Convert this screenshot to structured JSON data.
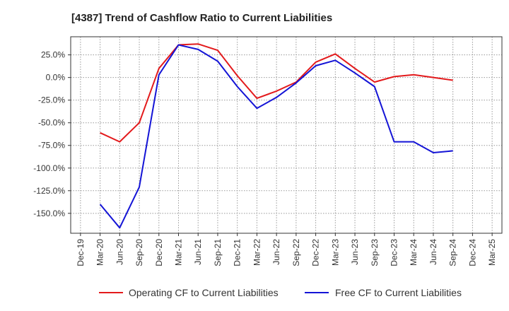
{
  "chart_data": {
    "type": "line",
    "title": "[4387]  Trend of Cashflow Ratio to Current Liabilities",
    "x_categories": [
      "Dec-19",
      "Mar-20",
      "Jun-20",
      "Sep-20",
      "Dec-20",
      "Mar-21",
      "Jun-21",
      "Sep-21",
      "Dec-21",
      "Mar-22",
      "Jun-22",
      "Sep-22",
      "Dec-22",
      "Mar-23",
      "Jun-23",
      "Sep-23",
      "Dec-23",
      "Mar-24",
      "Jun-24",
      "Sep-24",
      "Dec-24",
      "Mar-25"
    ],
    "y_ticks": [
      25,
      0,
      -25,
      -50,
      -75,
      -100,
      -125,
      -150
    ],
    "y_tick_labels": [
      "25.0%",
      "0.0%",
      "-25.0%",
      "-50.0%",
      "-75.0%",
      "-100.0%",
      "-125.0%",
      "-150.0%"
    ],
    "ylim": [
      -172,
      45
    ],
    "grid": true,
    "legend_position": "bottom",
    "series": [
      {
        "name": "Operating CF to Current Liabilities",
        "color": "#e31a1c",
        "values": [
          null,
          -61,
          -71,
          -50,
          10,
          36,
          37,
          30,
          2,
          -23,
          -15,
          -5,
          17,
          26,
          10,
          -5,
          1,
          3,
          0,
          -3,
          null,
          null
        ]
      },
      {
        "name": "Free CF to Current Liabilities",
        "color": "#1414d6",
        "values": [
          null,
          -140,
          -166,
          -121,
          3,
          36,
          31,
          18,
          -10,
          -34,
          -22,
          -6,
          13,
          19,
          5,
          -10,
          -71,
          -71,
          -83,
          -81,
          null,
          null
        ]
      }
    ]
  }
}
